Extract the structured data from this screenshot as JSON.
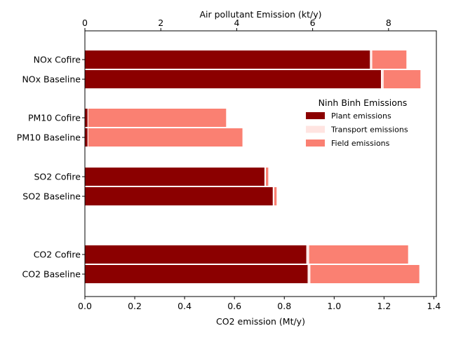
{
  "chart_data": {
    "type": "bar",
    "orientation": "horizontal",
    "stacked": true,
    "categories": [
      "NOx Cofire",
      "NOx Baseline",
      "PM10 Cofire",
      "PM10 Baseline",
      "SO2 Cofire",
      "SO2 Baseline",
      "CO2 Cofire",
      "CO2 Baseline"
    ],
    "category_axis": [
      "air",
      "air",
      "air",
      "air",
      "air",
      "air",
      "co2",
      "co2"
    ],
    "series": [
      {
        "name": "Plant emissions",
        "color": "#8b0000",
        "values": [
          7.52,
          7.81,
          0.08,
          0.08,
          4.74,
          4.96,
          0.89,
          0.895
        ]
      },
      {
        "name": "Transport emissions",
        "color": "#ffe4e1",
        "values": [
          0.04,
          0.05,
          0.0,
          0.0,
          0.02,
          0.02,
          0.008,
          0.008
        ]
      },
      {
        "name": "Field emissions",
        "color": "#fa8072",
        "values": [
          0.92,
          0.99,
          3.65,
          4.08,
          0.08,
          0.08,
          0.4,
          0.44
        ]
      }
    ],
    "xlabel": "CO2 emission (Mt/y)",
    "xlim": [
      0,
      1.41
    ],
    "xticks": [
      "0.0",
      "0.2",
      "0.4",
      "0.6",
      "0.8",
      "1.0",
      "1.2",
      "1.4"
    ],
    "x2label": "Air pollutant Emission (kt/y)",
    "x2lim": [
      0,
      9.26
    ],
    "x2ticks": [
      "0",
      "2",
      "4",
      "6",
      "8"
    ],
    "legend": {
      "title": "Ninh Binh Emissions",
      "placement": "right"
    },
    "grid": false
  }
}
